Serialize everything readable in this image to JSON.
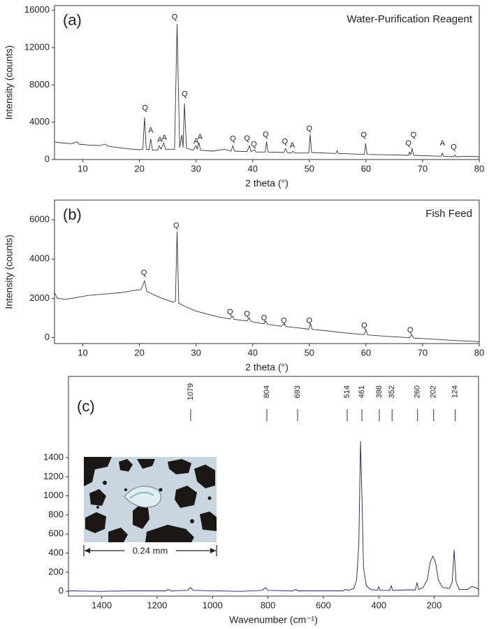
{
  "chart_data": [
    {
      "type": "line",
      "panel_label": "(a)",
      "title": "Water-Purification Reagent",
      "xlabel": "2 theta (°)",
      "ylabel": "Intensity (counts)",
      "color": "#333333",
      "xlim": [
        5,
        80
      ],
      "ylim": [
        0,
        16500
      ],
      "xticks": [
        10,
        20,
        30,
        40,
        50,
        60,
        70,
        80
      ],
      "yticks": [
        0,
        4000,
        8000,
        12000,
        16000
      ],
      "x": [
        5,
        6,
        8,
        9,
        9.3,
        11,
        13,
        14,
        14.3,
        16,
        18,
        20,
        20.6,
        20.9,
        21.2,
        21.7,
        22,
        22.3,
        23.2,
        23.5,
        23.8,
        24.3,
        24.6,
        26.2,
        26.65,
        27.1,
        27.5,
        27.7,
        27.95,
        28.3,
        29.5,
        30,
        30.2,
        30.5,
        30.8,
        33,
        35,
        36.2,
        36.5,
        36.8,
        39,
        39.45,
        39.7,
        40.3,
        40.6,
        42.2,
        42.45,
        42.7,
        45.5,
        45.8,
        46.1,
        46.8,
        47.1,
        47.4,
        49.9,
        50.15,
        50.4,
        54.7,
        54.9,
        55.2,
        59.7,
        59.95,
        60.2,
        64,
        67.5,
        67.7,
        67.9,
        68.15,
        68.4,
        73.3,
        73.5,
        73.7,
        75.5,
        75.7,
        75.9,
        78,
        80
      ],
      "values": [
        1900,
        1800,
        1700,
        1900,
        1650,
        1550,
        1500,
        1650,
        1450,
        1300,
        1150,
        1050,
        1100,
        4500,
        1100,
        1050,
        2200,
        1000,
        1000,
        1500,
        1100,
        1800,
        1100,
        1100,
        14500,
        1300,
        2600,
        1300,
        6000,
        1200,
        1000,
        1500,
        1100,
        1800,
        1000,
        900,
        1100,
        900,
        1500,
        900,
        850,
        1500,
        850,
        1050,
        800,
        800,
        1900,
        800,
        750,
        1200,
        750,
        700,
        900,
        700,
        700,
        2700,
        750,
        650,
        950,
        650,
        550,
        1700,
        550,
        500,
        450,
        800,
        500,
        1200,
        450,
        350,
        700,
        350,
        300,
        500,
        300,
        350,
        300
      ],
      "annotations": [
        {
          "text": "Q",
          "x": 21,
          "y": 5500
        },
        {
          "text": "A",
          "x": 22,
          "y": 3100
        },
        {
          "text": "A",
          "x": 23.6,
          "y": 2100
        },
        {
          "text": "A",
          "x": 24.4,
          "y": 2300
        },
        {
          "text": "Q",
          "x": 26.2,
          "y": 15250
        },
        {
          "text": "Q",
          "x": 28,
          "y": 7000
        },
        {
          "text": "A",
          "x": 30,
          "y": 1950
        },
        {
          "text": "A",
          "x": 30.7,
          "y": 2400
        },
        {
          "text": "Q",
          "x": 36.5,
          "y": 2200
        },
        {
          "text": "Q",
          "x": 39,
          "y": 2250
        },
        {
          "text": "Q",
          "x": 40.2,
          "y": 1600
        },
        {
          "text": "Q",
          "x": 42.3,
          "y": 2650
        },
        {
          "text": "Q",
          "x": 45.7,
          "y": 1900
        },
        {
          "text": "A",
          "x": 47,
          "y": 1500
        },
        {
          "text": "Q",
          "x": 50,
          "y": 3300
        },
        {
          "text": "Q",
          "x": 59.6,
          "y": 2600
        },
        {
          "text": "Q",
          "x": 67.5,
          "y": 1700
        },
        {
          "text": "Q",
          "x": 68.4,
          "y": 2600
        },
        {
          "text": "A",
          "x": 73.5,
          "y": 1700
        },
        {
          "text": "Q",
          "x": 75.5,
          "y": 1300
        }
      ]
    },
    {
      "type": "line",
      "panel_label": "(b)",
      "title": "Fish Feed",
      "xlabel": "2 theta (°)",
      "ylabel": "Intensity (counts)",
      "color": "#333333",
      "xlim": [
        5,
        80
      ],
      "ylim": [
        -300,
        7000
      ],
      "xticks": [
        10,
        20,
        30,
        40,
        50,
        60,
        70,
        80
      ],
      "yticks": [
        0,
        2000,
        4000,
        6000
      ],
      "x": [
        5,
        5.5,
        7,
        9,
        11,
        13,
        15,
        17,
        19,
        20.3,
        20.9,
        21.3,
        22,
        24,
        26,
        26.35,
        26.65,
        26.95,
        28,
        30,
        32,
        34,
        36,
        36.4,
        36.7,
        39,
        39.4,
        39.7,
        42,
        42.3,
        42.6,
        45,
        45.5,
        45.9,
        48,
        49.9,
        50.2,
        50.5,
        53,
        56,
        59.7,
        60,
        60.3,
        64,
        67.7,
        68.1,
        68.4,
        72,
        76,
        80
      ],
      "values": [
        2300,
        2000,
        1950,
        2050,
        2150,
        2200,
        2250,
        2300,
        2400,
        2450,
        2900,
        2350,
        2250,
        2000,
        1800,
        1850,
        5400,
        1750,
        1600,
        1350,
        1200,
        1050,
        950,
        1100,
        930,
        850,
        1000,
        820,
        700,
        850,
        680,
        580,
        700,
        560,
        500,
        430,
        700,
        420,
        350,
        250,
        150,
        400,
        140,
        60,
        0,
        150,
        -20,
        -80,
        -150,
        -200
      ],
      "annotations": [
        {
          "text": "Q",
          "x": 20.8,
          "y": 3300
        },
        {
          "text": "Q",
          "x": 26.5,
          "y": 5700
        },
        {
          "text": "Q",
          "x": 36,
          "y": 1300
        },
        {
          "text": "Q",
          "x": 39,
          "y": 1200
        },
        {
          "text": "Q",
          "x": 42,
          "y": 1000
        },
        {
          "text": "Q",
          "x": 45.5,
          "y": 850
        },
        {
          "text": "Q",
          "x": 50,
          "y": 850
        },
        {
          "text": "Q",
          "x": 59.7,
          "y": 600
        },
        {
          "text": "Q",
          "x": 67.8,
          "y": 380
        }
      ]
    },
    {
      "type": "line",
      "panel_label": "(c)",
      "xlabel": "Wavenumber (cm⁻¹)",
      "color": "#1a1f5e",
      "xlim": [
        1520,
        40
      ],
      "ylim": [
        -50,
        2250
      ],
      "xticks": [
        1400,
        1200,
        1000,
        800,
        600,
        400,
        200
      ],
      "yticks": [
        0,
        200,
        400,
        600,
        800,
        1000,
        1200,
        1400
      ],
      "x": [
        1520,
        1400,
        1300,
        1170,
        1160,
        1150,
        1090,
        1080,
        1070,
        900,
        820,
        810,
        800,
        710,
        700,
        690,
        600,
        530,
        520,
        510,
        490,
        480,
        472,
        466,
        460,
        455,
        445,
        430,
        405,
        400,
        395,
        360,
        355,
        350,
        300,
        268,
        262,
        256,
        240,
        225,
        215,
        205,
        195,
        185,
        170,
        145,
        135,
        128,
        121,
        110,
        80,
        65,
        50,
        40
      ],
      "values": [
        5,
        0,
        5,
        5,
        20,
        5,
        10,
        40,
        10,
        0,
        10,
        40,
        10,
        5,
        20,
        5,
        5,
        5,
        20,
        10,
        30,
        120,
        500,
        1570,
        900,
        250,
        60,
        20,
        10,
        50,
        10,
        10,
        60,
        10,
        15,
        15,
        90,
        20,
        40,
        120,
        300,
        370,
        300,
        120,
        40,
        30,
        100,
        430,
        100,
        20,
        20,
        50,
        40,
        20
      ],
      "reference_lines": [
        1079,
        804,
        693,
        514,
        461,
        398,
        352,
        260,
        202,
        124
      ],
      "inset_label": "0.24 mm"
    }
  ]
}
